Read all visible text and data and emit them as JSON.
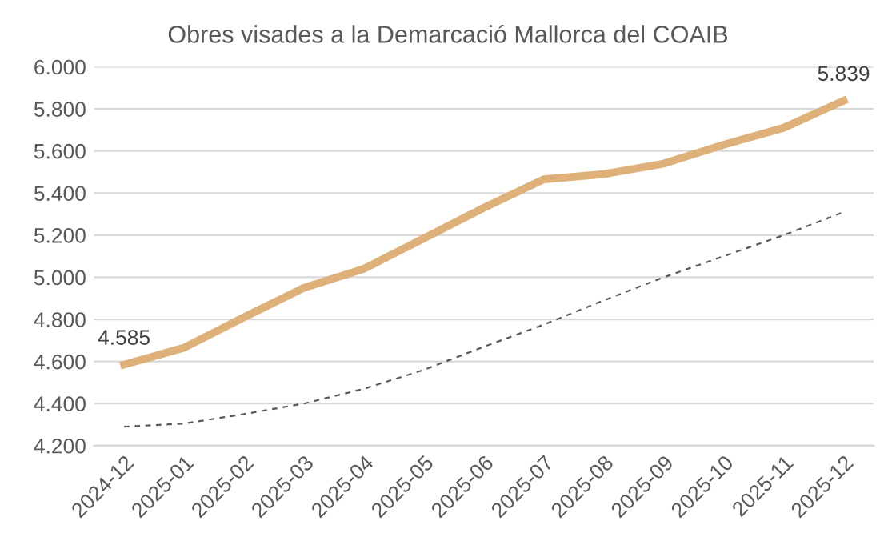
{
  "chart_data": {
    "type": "line",
    "title": "Obres visades a la Demarcació Mallorca del COAIB",
    "categories": [
      "2024-12",
      "2025-01",
      "2025-02",
      "2025-03",
      "2025-04",
      "2025-05",
      "2025-06",
      "2025-07",
      "2025-08",
      "2025-09",
      "2025-10",
      "2025-11",
      "2025-12"
    ],
    "series": [
      {
        "color": "#deb07a",
        "line_style": "solid",
        "values": [
          4585,
          4665,
          4810,
          4950,
          5040,
          5185,
          5330,
          5465,
          5490,
          5540,
          5630,
          5710,
          5839
        ],
        "value_labels": [
          "4.585",
          null,
          null,
          null,
          null,
          null,
          null,
          null,
          null,
          null,
          null,
          null,
          "5.839"
        ]
      },
      {
        "color": "#595959",
        "line_style": "dashed",
        "values": [
          4290,
          4305,
          4350,
          4400,
          4470,
          4560,
          4670,
          4775,
          4890,
          5000,
          5100,
          5200,
          5310
        ]
      }
    ],
    "ylim": [
      4200,
      6000
    ],
    "yticks": [
      {
        "value": 4200,
        "label": "4.200"
      },
      {
        "value": 4400,
        "label": "4.400"
      },
      {
        "value": 4600,
        "label": "4.600"
      },
      {
        "value": 4800,
        "label": "4.800"
      },
      {
        "value": 5000,
        "label": "5.000"
      },
      {
        "value": 5200,
        "label": "5.200"
      },
      {
        "value": 5400,
        "label": "5.400"
      },
      {
        "value": 5600,
        "label": "5.600"
      },
      {
        "value": 5800,
        "label": "5.800"
      },
      {
        "value": 6000,
        "label": "6.000"
      }
    ],
    "grid": "y",
    "legend": false,
    "marker": "none"
  }
}
